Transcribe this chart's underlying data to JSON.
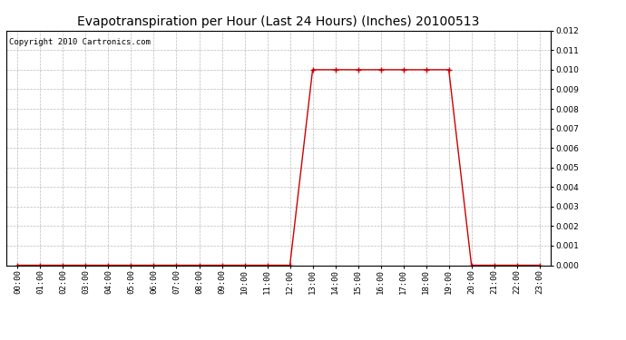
{
  "title": "Evapotranspiration per Hour (Last 24 Hours) (Inches) 20100513",
  "copyright": "Copyright 2010 Cartronics.com",
  "hours": [
    "00:00",
    "01:00",
    "02:00",
    "03:00",
    "04:00",
    "05:00",
    "06:00",
    "07:00",
    "08:00",
    "09:00",
    "10:00",
    "11:00",
    "12:00",
    "13:00",
    "14:00",
    "15:00",
    "16:00",
    "17:00",
    "18:00",
    "19:00",
    "20:00",
    "21:00",
    "22:00",
    "23:00"
  ],
  "values": [
    0.0,
    0.0,
    0.0,
    0.0,
    0.0,
    0.0,
    0.0,
    0.0,
    0.0,
    0.0,
    0.0,
    0.0,
    0.0,
    0.01,
    0.01,
    0.01,
    0.01,
    0.01,
    0.01,
    0.01,
    0.0,
    0.0,
    0.0,
    0.0
  ],
  "ylim": [
    0.0,
    0.012
  ],
  "yticks": [
    0.0,
    0.001,
    0.002,
    0.003,
    0.004,
    0.005,
    0.006,
    0.007,
    0.008,
    0.009,
    0.01,
    0.011,
    0.012
  ],
  "line_color": "#cc0000",
  "marker": "+",
  "marker_color": "#cc0000",
  "grid_color": "#bbbbbb",
  "bg_color": "#ffffff",
  "title_fontsize": 10,
  "copyright_fontsize": 6.5,
  "tick_fontsize": 6.5
}
